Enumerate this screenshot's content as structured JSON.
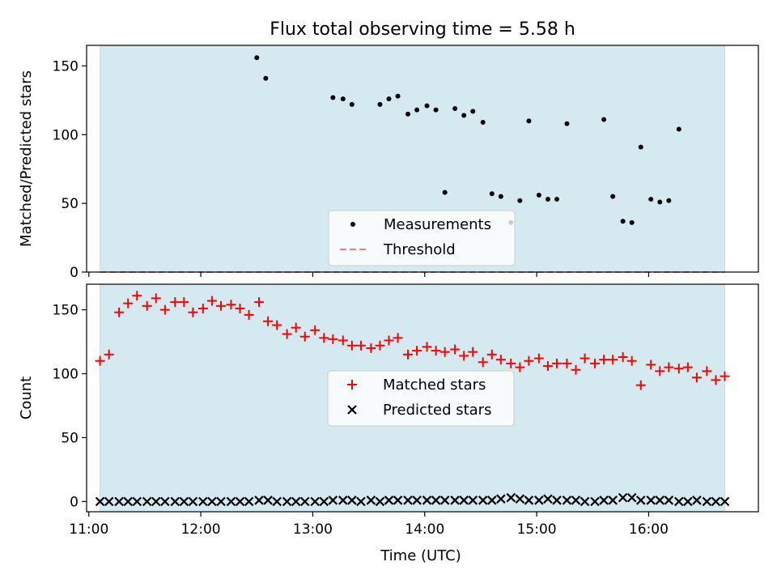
{
  "title": "Flux total observing time = 5.58 h",
  "chart_data": [
    {
      "type": "scatter",
      "ylabel": "Matched/Predicted stars",
      "xlim": [
        10.98,
        16.98
      ],
      "ylim": [
        0,
        165
      ],
      "yticks": [
        0,
        50,
        100,
        150
      ],
      "shaded_span": [
        11.1,
        16.68
      ],
      "shade_color": "#d4eaf0",
      "threshold": 0,
      "legend_position": "lower center",
      "legend": [
        {
          "label": "Measurements",
          "marker": "dot",
          "color": "#000000"
        },
        {
          "label": "Threshold",
          "marker": "dashed-line",
          "color": "#f08080"
        }
      ],
      "series": [
        {
          "name": "Measurements",
          "marker": "dot",
          "color": "#000000",
          "points": [
            [
              12.5,
              156
            ],
            [
              12.58,
              141
            ],
            [
              13.18,
              127
            ],
            [
              13.27,
              126
            ],
            [
              13.35,
              122
            ],
            [
              13.6,
              122
            ],
            [
              13.68,
              126
            ],
            [
              13.76,
              128
            ],
            [
              13.85,
              115
            ],
            [
              13.93,
              118
            ],
            [
              14.02,
              121
            ],
            [
              14.1,
              118
            ],
            [
              14.18,
              58
            ],
            [
              14.27,
              119
            ],
            [
              14.35,
              114
            ],
            [
              14.43,
              117
            ],
            [
              14.52,
              109
            ],
            [
              14.6,
              57
            ],
            [
              14.68,
              55
            ],
            [
              14.77,
              36
            ],
            [
              14.85,
              52
            ],
            [
              14.93,
              110
            ],
            [
              15.02,
              56
            ],
            [
              15.1,
              53
            ],
            [
              15.18,
              53
            ],
            [
              15.27,
              108
            ],
            [
              15.6,
              111
            ],
            [
              15.68,
              55
            ],
            [
              15.77,
              37
            ],
            [
              15.85,
              36
            ],
            [
              15.93,
              91
            ],
            [
              16.02,
              53
            ],
            [
              16.1,
              51
            ],
            [
              16.18,
              52
            ],
            [
              16.27,
              104
            ]
          ]
        }
      ]
    },
    {
      "type": "scatter",
      "xlabel": "Time (UTC)",
      "ylabel": "Count",
      "xlim": [
        10.98,
        16.98
      ],
      "ylim": [
        -8,
        170
      ],
      "yticks": [
        0,
        50,
        100,
        150
      ],
      "xticks": [
        "11:00",
        "12:00",
        "13:00",
        "14:00",
        "15:00",
        "16:00"
      ],
      "xtick_values": [
        11,
        12,
        13,
        14,
        15,
        16
      ],
      "shaded_span": [
        11.1,
        16.68
      ],
      "shade_color": "#d4eaf0",
      "legend_position": "center",
      "legend": [
        {
          "label": "Matched stars",
          "marker": "plus",
          "color": "#ff0000"
        },
        {
          "label": "Predicted stars",
          "marker": "x",
          "color": "#000000"
        }
      ],
      "series": [
        {
          "name": "Matched stars",
          "marker": "plus",
          "color": "#ff0000",
          "points": [
            [
              11.1,
              110
            ],
            [
              11.18,
              115
            ],
            [
              11.27,
              148
            ],
            [
              11.35,
              155
            ],
            [
              11.43,
              161
            ],
            [
              11.52,
              153
            ],
            [
              11.6,
              159
            ],
            [
              11.68,
              150
            ],
            [
              11.77,
              156
            ],
            [
              11.85,
              156
            ],
            [
              11.93,
              148
            ],
            [
              12.02,
              151
            ],
            [
              12.1,
              157
            ],
            [
              12.18,
              153
            ],
            [
              12.27,
              154
            ],
            [
              12.35,
              151
            ],
            [
              12.43,
              146
            ],
            [
              12.52,
              156
            ],
            [
              12.6,
              141
            ],
            [
              12.68,
              138
            ],
            [
              12.77,
              131
            ],
            [
              12.85,
              136
            ],
            [
              12.93,
              129
            ],
            [
              13.02,
              134
            ],
            [
              13.1,
              128
            ],
            [
              13.18,
              127
            ],
            [
              13.27,
              126
            ],
            [
              13.35,
              122
            ],
            [
              13.43,
              122
            ],
            [
              13.52,
              120
            ],
            [
              13.6,
              122
            ],
            [
              13.68,
              126
            ],
            [
              13.76,
              128
            ],
            [
              13.85,
              115
            ],
            [
              13.93,
              118
            ],
            [
              14.02,
              121
            ],
            [
              14.1,
              118
            ],
            [
              14.18,
              117
            ],
            [
              14.27,
              119
            ],
            [
              14.35,
              114
            ],
            [
              14.43,
              117
            ],
            [
              14.52,
              109
            ],
            [
              14.6,
              115
            ],
            [
              14.68,
              111
            ],
            [
              14.77,
              108
            ],
            [
              14.85,
              105
            ],
            [
              14.93,
              110
            ],
            [
              15.02,
              112
            ],
            [
              15.1,
              106
            ],
            [
              15.18,
              108
            ],
            [
              15.27,
              108
            ],
            [
              15.35,
              103
            ],
            [
              15.43,
              112
            ],
            [
              15.52,
              108
            ],
            [
              15.6,
              111
            ],
            [
              15.68,
              111
            ],
            [
              15.77,
              113
            ],
            [
              15.85,
              110
            ],
            [
              15.93,
              91
            ],
            [
              16.02,
              107
            ],
            [
              16.1,
              102
            ],
            [
              16.18,
              105
            ],
            [
              16.27,
              104
            ],
            [
              16.35,
              105
            ],
            [
              16.43,
              97
            ],
            [
              16.52,
              102
            ],
            [
              16.6,
              95
            ],
            [
              16.68,
              98
            ]
          ]
        },
        {
          "name": "Predicted stars",
          "marker": "x",
          "color": "#000000",
          "points": [
            [
              11.1,
              0
            ],
            [
              11.18,
              0
            ],
            [
              11.27,
              0
            ],
            [
              11.35,
              0
            ],
            [
              11.43,
              0
            ],
            [
              11.52,
              0
            ],
            [
              11.6,
              0
            ],
            [
              11.68,
              0
            ],
            [
              11.77,
              0
            ],
            [
              11.85,
              0
            ],
            [
              11.93,
              0
            ],
            [
              12.02,
              0
            ],
            [
              12.1,
              0
            ],
            [
              12.18,
              0
            ],
            [
              12.27,
              0
            ],
            [
              12.35,
              0
            ],
            [
              12.43,
              0
            ],
            [
              12.52,
              1
            ],
            [
              12.6,
              1
            ],
            [
              12.68,
              0
            ],
            [
              12.77,
              0
            ],
            [
              12.85,
              0
            ],
            [
              12.93,
              0
            ],
            [
              13.02,
              0
            ],
            [
              13.1,
              0
            ],
            [
              13.18,
              1
            ],
            [
              13.27,
              1
            ],
            [
              13.35,
              1
            ],
            [
              13.43,
              0
            ],
            [
              13.52,
              1
            ],
            [
              13.6,
              0
            ],
            [
              13.68,
              1
            ],
            [
              13.76,
              1
            ],
            [
              13.85,
              1
            ],
            [
              13.93,
              1
            ],
            [
              14.02,
              1
            ],
            [
              14.1,
              1
            ],
            [
              14.18,
              1
            ],
            [
              14.27,
              1
            ],
            [
              14.35,
              1
            ],
            [
              14.43,
              1
            ],
            [
              14.52,
              1
            ],
            [
              14.6,
              1
            ],
            [
              14.68,
              2
            ],
            [
              14.77,
              3
            ],
            [
              14.85,
              2
            ],
            [
              14.93,
              1
            ],
            [
              15.02,
              1
            ],
            [
              15.1,
              2
            ],
            [
              15.18,
              1
            ],
            [
              15.27,
              1
            ],
            [
              15.35,
              1
            ],
            [
              15.43,
              0
            ],
            [
              15.52,
              0
            ],
            [
              15.6,
              1
            ],
            [
              15.68,
              1
            ],
            [
              15.77,
              3
            ],
            [
              15.85,
              3
            ],
            [
              15.93,
              1
            ],
            [
              16.02,
              1
            ],
            [
              16.1,
              1
            ],
            [
              16.18,
              1
            ],
            [
              16.27,
              0
            ],
            [
              16.35,
              0
            ],
            [
              16.43,
              1
            ],
            [
              16.52,
              0
            ],
            [
              16.6,
              0
            ],
            [
              16.68,
              0
            ]
          ]
        }
      ]
    }
  ]
}
